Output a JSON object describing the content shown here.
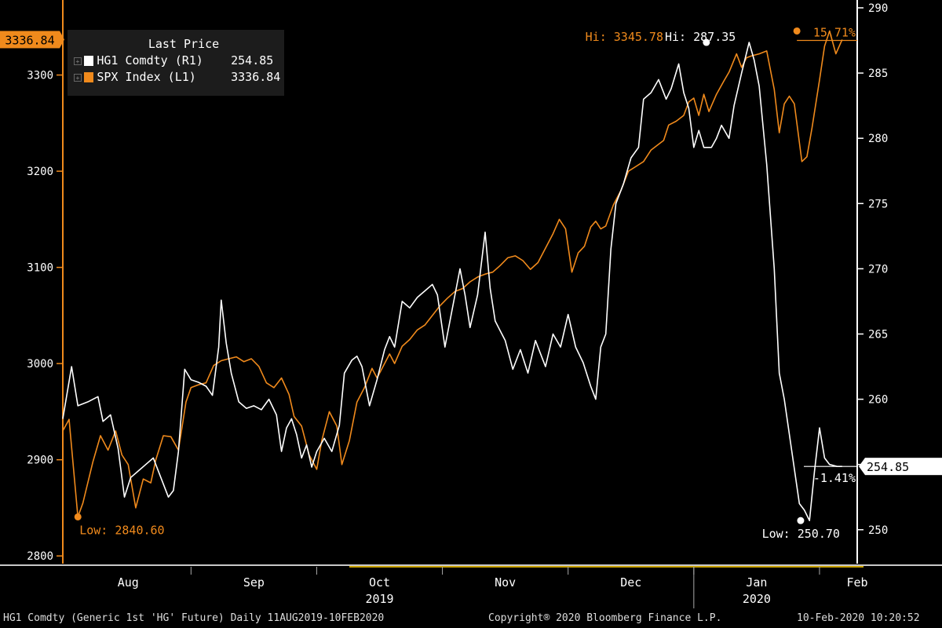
{
  "legend": {
    "title": "Last Price",
    "items": [
      {
        "name": "HG1 Comdty  (R1)",
        "value": "254.85",
        "color": "#ffffff"
      },
      {
        "name": "SPX Index  (L1)",
        "value": "3336.84",
        "color": "#f08a1c"
      }
    ]
  },
  "footer": {
    "left": "HG1 Comdty (Generic 1st 'HG' Future)  Daily 11AUG2019-10FEB2020",
    "center": "Copyright® 2020 Bloomberg Finance L.P.",
    "right": "10-Feb-2020 10:20:52"
  },
  "chart_data": {
    "type": "line",
    "colors": {
      "background": "#000000",
      "hg1": "#ffffff",
      "spx": "#f08a1c",
      "axis_left": "#f08a1c",
      "axis_right": "#ffffff"
    },
    "x_axis": {
      "month_labels": [
        "Aug",
        "Sep",
        "Oct",
        "Nov",
        "Dec",
        "Jan",
        "Feb"
      ],
      "month_positions": [
        0.5,
        1.5,
        2.5,
        3.5,
        4.5,
        5.5,
        6.3
      ],
      "month_bounds": [
        1,
        2,
        3,
        4,
        5,
        6
      ],
      "year_labels": [
        {
          "text": "2019",
          "pos": 2.5
        },
        {
          "text": "2020",
          "pos": 5.5
        }
      ],
      "range": [
        -0.02,
        6.3
      ]
    },
    "left_axis": {
      "series": "SPX Index (L1)",
      "ticks": [
        2800,
        2900,
        3000,
        3100,
        3200,
        3300
      ],
      "range": [
        2792,
        3378
      ],
      "current_label": "3336.84",
      "current_value": 3336.84
    },
    "right_axis": {
      "series": "HG1 Comdty (R1)",
      "ticks": [
        250,
        255,
        260,
        265,
        270,
        275,
        280,
        285,
        290
      ],
      "range": [
        247.4,
        290.6
      ],
      "current_label": "254.85",
      "current_value": 254.85
    },
    "annotations": {
      "spx_hi": {
        "text": "Hi: 3345.78",
        "x": 5.82,
        "value": 3345.78
      },
      "spx_low": {
        "text": "Low: 2840.60",
        "x": 0.1,
        "value": 2840.6
      },
      "spx_change": {
        "text": "15.71%"
      },
      "hg_hi": {
        "text": "Hi: 287.35",
        "x": 5.1,
        "value": 287.35
      },
      "hg_low": {
        "text": "Low: 250.70",
        "x": 5.85,
        "value": 250.7
      },
      "hg_change": {
        "text": "-1.41%"
      }
    },
    "series": [
      {
        "id": "spx",
        "points": [
          [
            -0.02,
            2930
          ],
          [
            0.03,
            2942
          ],
          [
            0.1,
            2840.6
          ],
          [
            0.14,
            2855
          ],
          [
            0.22,
            2898
          ],
          [
            0.28,
            2925
          ],
          [
            0.34,
            2910
          ],
          [
            0.4,
            2930
          ],
          [
            0.45,
            2905
          ],
          [
            0.5,
            2895
          ],
          [
            0.56,
            2850
          ],
          [
            0.62,
            2880
          ],
          [
            0.68,
            2876
          ],
          [
            0.72,
            2900
          ],
          [
            0.78,
            2925
          ],
          [
            0.84,
            2924
          ],
          [
            0.9,
            2910
          ],
          [
            0.96,
            2960
          ],
          [
            1.0,
            2975
          ],
          [
            1.06,
            2978
          ],
          [
            1.12,
            2980
          ],
          [
            1.18,
            2998
          ],
          [
            1.24,
            3003
          ],
          [
            1.3,
            3005
          ],
          [
            1.36,
            3007
          ],
          [
            1.42,
            3002
          ],
          [
            1.48,
            3005
          ],
          [
            1.54,
            2997
          ],
          [
            1.6,
            2980
          ],
          [
            1.66,
            2975
          ],
          [
            1.72,
            2985
          ],
          [
            1.78,
            2968
          ],
          [
            1.82,
            2945
          ],
          [
            1.88,
            2935
          ],
          [
            1.94,
            2905
          ],
          [
            2.0,
            2890
          ],
          [
            2.04,
            2920
          ],
          [
            2.1,
            2950
          ],
          [
            2.16,
            2935
          ],
          [
            2.2,
            2895
          ],
          [
            2.26,
            2920
          ],
          [
            2.32,
            2960
          ],
          [
            2.38,
            2975
          ],
          [
            2.44,
            2995
          ],
          [
            2.48,
            2985
          ],
          [
            2.54,
            3000
          ],
          [
            2.58,
            3010
          ],
          [
            2.62,
            3000
          ],
          [
            2.68,
            3018
          ],
          [
            2.74,
            3025
          ],
          [
            2.8,
            3035
          ],
          [
            2.86,
            3040
          ],
          [
            2.92,
            3050
          ],
          [
            2.98,
            3060
          ],
          [
            3.04,
            3068
          ],
          [
            3.1,
            3075
          ],
          [
            3.16,
            3078
          ],
          [
            3.22,
            3085
          ],
          [
            3.28,
            3090
          ],
          [
            3.34,
            3093
          ],
          [
            3.4,
            3095
          ],
          [
            3.46,
            3102
          ],
          [
            3.52,
            3110
          ],
          [
            3.58,
            3112
          ],
          [
            3.64,
            3107
          ],
          [
            3.7,
            3098
          ],
          [
            3.76,
            3105
          ],
          [
            3.82,
            3120
          ],
          [
            3.88,
            3135
          ],
          [
            3.93,
            3150
          ],
          [
            3.98,
            3140
          ],
          [
            4.03,
            3095
          ],
          [
            4.08,
            3115
          ],
          [
            4.13,
            3122
          ],
          [
            4.18,
            3142
          ],
          [
            4.22,
            3148
          ],
          [
            4.26,
            3140
          ],
          [
            4.3,
            3143
          ],
          [
            4.36,
            3165
          ],
          [
            4.42,
            3180
          ],
          [
            4.48,
            3200
          ],
          [
            4.54,
            3205
          ],
          [
            4.6,
            3210
          ],
          [
            4.66,
            3222
          ],
          [
            4.72,
            3228
          ],
          [
            4.76,
            3232
          ],
          [
            4.8,
            3248
          ],
          [
            4.86,
            3252
          ],
          [
            4.92,
            3258
          ],
          [
            4.96,
            3272
          ],
          [
            5.0,
            3276
          ],
          [
            5.04,
            3258
          ],
          [
            5.08,
            3280
          ],
          [
            5.12,
            3262
          ],
          [
            5.18,
            3280
          ],
          [
            5.24,
            3294
          ],
          [
            5.28,
            3303
          ],
          [
            5.34,
            3322
          ],
          [
            5.38,
            3308
          ],
          [
            5.42,
            3318
          ],
          [
            5.46,
            3320
          ],
          [
            5.52,
            3322
          ],
          [
            5.58,
            3325
          ],
          [
            5.64,
            3285
          ],
          [
            5.68,
            3240
          ],
          [
            5.72,
            3270
          ],
          [
            5.76,
            3278
          ],
          [
            5.8,
            3270
          ],
          [
            5.86,
            3210
          ],
          [
            5.9,
            3215
          ],
          [
            5.94,
            3245
          ],
          [
            6.0,
            3295
          ],
          [
            6.04,
            3330
          ],
          [
            6.08,
            3345.78
          ],
          [
            6.13,
            3322
          ],
          [
            6.18,
            3336.84
          ]
        ]
      },
      {
        "id": "hg1",
        "points": [
          [
            -0.02,
            258.5
          ],
          [
            0.05,
            262.5
          ],
          [
            0.1,
            259.5
          ],
          [
            0.18,
            259.8
          ],
          [
            0.26,
            260.2
          ],
          [
            0.3,
            258.3
          ],
          [
            0.36,
            258.8
          ],
          [
            0.42,
            256.2
          ],
          [
            0.47,
            252.5
          ],
          [
            0.52,
            254.0
          ],
          [
            0.58,
            254.5
          ],
          [
            0.64,
            255.0
          ],
          [
            0.7,
            255.5
          ],
          [
            0.76,
            254.0
          ],
          [
            0.82,
            252.5
          ],
          [
            0.86,
            253.0
          ],
          [
            0.9,
            256.0
          ],
          [
            0.95,
            262.3
          ],
          [
            1.0,
            261.5
          ],
          [
            1.06,
            261.3
          ],
          [
            1.12,
            261.0
          ],
          [
            1.17,
            260.3
          ],
          [
            1.22,
            264.0
          ],
          [
            1.24,
            267.6
          ],
          [
            1.28,
            264.3
          ],
          [
            1.32,
            262.0
          ],
          [
            1.38,
            259.8
          ],
          [
            1.44,
            259.3
          ],
          [
            1.5,
            259.5
          ],
          [
            1.56,
            259.2
          ],
          [
            1.62,
            260.0
          ],
          [
            1.68,
            258.8
          ],
          [
            1.72,
            256.0
          ],
          [
            1.76,
            257.8
          ],
          [
            1.8,
            258.5
          ],
          [
            1.84,
            257.3
          ],
          [
            1.88,
            255.5
          ],
          [
            1.92,
            256.5
          ],
          [
            1.96,
            254.8
          ],
          [
            2.0,
            256.0
          ],
          [
            2.06,
            257.0
          ],
          [
            2.12,
            256.0
          ],
          [
            2.18,
            258.0
          ],
          [
            2.22,
            262.0
          ],
          [
            2.28,
            263.0
          ],
          [
            2.32,
            263.3
          ],
          [
            2.36,
            262.5
          ],
          [
            2.42,
            259.5
          ],
          [
            2.48,
            261.5
          ],
          [
            2.54,
            263.8
          ],
          [
            2.58,
            264.8
          ],
          [
            2.62,
            264.0
          ],
          [
            2.68,
            267.5
          ],
          [
            2.74,
            267.0
          ],
          [
            2.8,
            267.8
          ],
          [
            2.86,
            268.3
          ],
          [
            2.92,
            268.8
          ],
          [
            2.96,
            268.0
          ],
          [
            3.02,
            264.0
          ],
          [
            3.08,
            267.0
          ],
          [
            3.14,
            270.0
          ],
          [
            3.18,
            268.0
          ],
          [
            3.22,
            265.5
          ],
          [
            3.28,
            268.0
          ],
          [
            3.34,
            272.8
          ],
          [
            3.38,
            268.5
          ],
          [
            3.42,
            266.0
          ],
          [
            3.5,
            264.5
          ],
          [
            3.56,
            262.3
          ],
          [
            3.62,
            263.8
          ],
          [
            3.68,
            262.0
          ],
          [
            3.74,
            264.5
          ],
          [
            3.78,
            263.5
          ],
          [
            3.82,
            262.5
          ],
          [
            3.88,
            265.0
          ],
          [
            3.94,
            264.0
          ],
          [
            4.0,
            266.5
          ],
          [
            4.06,
            264.0
          ],
          [
            4.12,
            262.8
          ],
          [
            4.18,
            261.0
          ],
          [
            4.22,
            260.0
          ],
          [
            4.26,
            264.0
          ],
          [
            4.3,
            265.0
          ],
          [
            4.34,
            271.5
          ],
          [
            4.38,
            275.0
          ],
          [
            4.44,
            276.5
          ],
          [
            4.5,
            278.5
          ],
          [
            4.56,
            279.3
          ],
          [
            4.6,
            283.0
          ],
          [
            4.66,
            283.5
          ],
          [
            4.72,
            284.5
          ],
          [
            4.78,
            283.0
          ],
          [
            4.82,
            283.8
          ],
          [
            4.88,
            285.7
          ],
          [
            4.92,
            283.5
          ],
          [
            4.96,
            282.3
          ],
          [
            5.0,
            279.3
          ],
          [
            5.04,
            280.6
          ],
          [
            5.08,
            279.3
          ],
          [
            5.14,
            279.3
          ],
          [
            5.18,
            280.0
          ],
          [
            5.22,
            281.0
          ],
          [
            5.28,
            280.0
          ],
          [
            5.32,
            282.5
          ],
          [
            5.38,
            285.0
          ],
          [
            5.44,
            287.35
          ],
          [
            5.48,
            286.0
          ],
          [
            5.52,
            284.0
          ],
          [
            5.58,
            278.0
          ],
          [
            5.64,
            270.0
          ],
          [
            5.68,
            262.0
          ],
          [
            5.72,
            260.0
          ],
          [
            5.78,
            256.0
          ],
          [
            5.84,
            252.0
          ],
          [
            5.88,
            251.5
          ],
          [
            5.92,
            250.7
          ],
          [
            5.96,
            254.5
          ],
          [
            6.0,
            257.8
          ],
          [
            6.04,
            255.5
          ],
          [
            6.08,
            255.0
          ],
          [
            6.14,
            254.85
          ],
          [
            6.18,
            254.85
          ]
        ]
      }
    ]
  }
}
